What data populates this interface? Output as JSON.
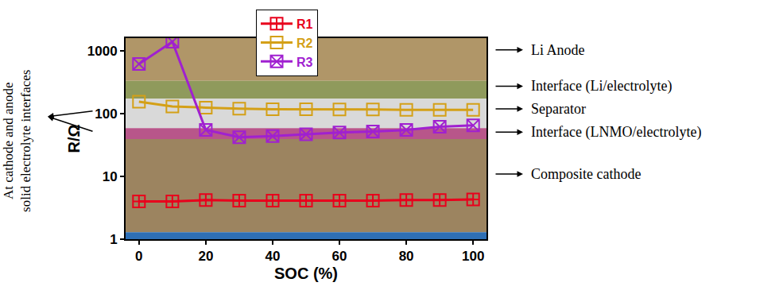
{
  "chart_data": {
    "type": "line",
    "x": [
      0,
      10,
      20,
      30,
      40,
      50,
      60,
      70,
      80,
      90,
      100
    ],
    "xlabel": "SOC (%)",
    "ylabel": "R/Ω",
    "xlim": [
      -4,
      104
    ],
    "xticks": [
      0,
      20,
      40,
      60,
      80,
      100
    ],
    "ylim": [
      1,
      1600
    ],
    "yticks": [
      1,
      10,
      100,
      1000
    ],
    "log": "y",
    "grid": false,
    "legend": "upper center",
    "series": [
      {
        "name": "R1",
        "color": "#e8001c",
        "marker": "square-cross",
        "line_style": "solid",
        "values": [
          4.0,
          4.0,
          4.2,
          4.1,
          4.1,
          4.1,
          4.1,
          4.1,
          4.2,
          4.2,
          4.3
        ]
      },
      {
        "name": "R2",
        "color": "#d4a017",
        "marker": "square",
        "line_style": "solid",
        "values": [
          155,
          130,
          125,
          120,
          118,
          118,
          117,
          117,
          115,
          115,
          115
        ]
      },
      {
        "name": "R3",
        "color": "#a020d0",
        "marker": "square-x",
        "line_style": "solid",
        "values": [
          620,
          1400,
          55,
          42,
          44,
          47,
          50,
          52,
          55,
          62,
          65
        ]
      }
    ],
    "annotations": {
      "layers": [
        "Li Anode",
        "Interface (Li/electrolyte)",
        "Separator",
        "Interface (LNMO/electrolyte)",
        "Composite cathode"
      ],
      "left_note": [
        "At cathode and anode",
        "solid electrolyte interfaces"
      ]
    }
  }
}
